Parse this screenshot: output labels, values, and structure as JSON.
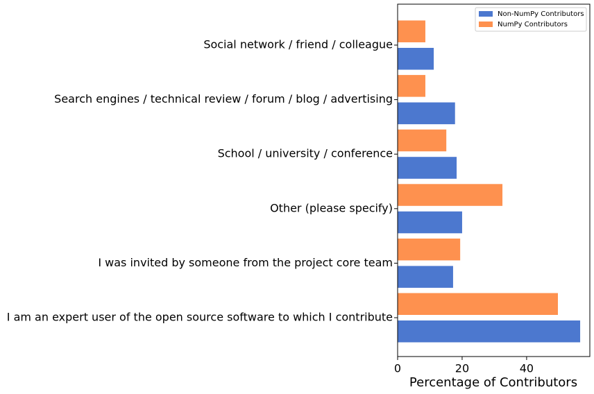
{
  "chart_data": {
    "type": "barh",
    "xlabel": "Percentage of Contributors",
    "categories": [
      "I am an expert user of the open source software to which I contribute",
      "I was invited by someone from the project core team",
      "Other (please specify)",
      "School / university / conference",
      "Search engines / technical review / forum / blog / advertising",
      "Social network / friend / colleague"
    ],
    "series": [
      {
        "name": "Non-NumPy Contributors",
        "color": "#4c78cf",
        "values": [
          56.6,
          17.2,
          20.0,
          18.3,
          17.8,
          11.2
        ]
      },
      {
        "name": "NumPy Contributors",
        "color": "#fe914f",
        "values": [
          49.7,
          19.4,
          32.5,
          15.1,
          8.6,
          8.6
        ]
      }
    ],
    "xlim": [
      0,
      59.6
    ],
    "xticks": [
      0,
      20,
      40
    ],
    "legend": "upper right"
  }
}
